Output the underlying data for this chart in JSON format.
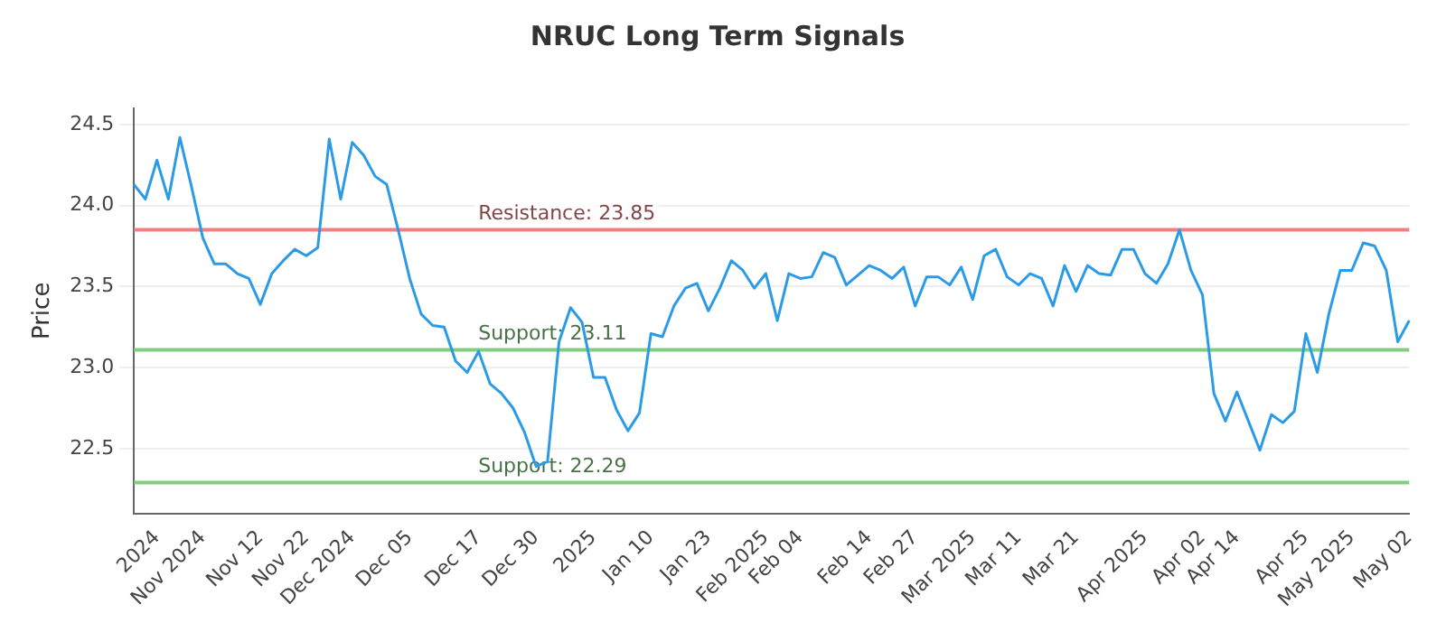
{
  "chart_data": {
    "type": "line",
    "title": "NRUC Long Term Signals",
    "ylabel": "Price",
    "categories": [
      null,
      null,
      "2024",
      null,
      null,
      null,
      "Nov 2024",
      null,
      null,
      null,
      null,
      "Nov 12",
      null,
      null,
      null,
      "Nov 22",
      null,
      null,
      null,
      "Dec 2024",
      null,
      null,
      null,
      null,
      "Dec 05",
      null,
      null,
      null,
      null,
      null,
      "Dec 17",
      null,
      null,
      null,
      null,
      "Dec 30",
      null,
      null,
      null,
      null,
      "2025",
      null,
      null,
      null,
      null,
      "Jan 10",
      null,
      null,
      null,
      null,
      "Jan 23",
      null,
      null,
      null,
      null,
      "Feb 2025",
      null,
      null,
      "Feb 04",
      null,
      null,
      null,
      null,
      null,
      "Feb 14",
      null,
      null,
      null,
      "Feb 27",
      null,
      null,
      null,
      null,
      "Mar 2025",
      null,
      null,
      null,
      "Mar 11",
      null,
      null,
      null,
      null,
      "Mar 21",
      null,
      null,
      null,
      null,
      null,
      "Apr 2025",
      null,
      null,
      null,
      null,
      "Apr 02",
      null,
      null,
      "Apr 14",
      null,
      null,
      null,
      null,
      null,
      "Apr 25",
      null,
      null,
      null,
      "May 2025",
      null,
      null,
      null,
      null,
      "May 02"
    ],
    "series": [
      {
        "color": "#2b9be8",
        "values": [
          24.13,
          24.04,
          24.28,
          24.04,
          24.42,
          24.12,
          23.8,
          23.64,
          23.64,
          23.58,
          23.55,
          23.39,
          23.58,
          23.66,
          23.73,
          23.69,
          23.74,
          24.41,
          24.04,
          24.39,
          24.31,
          24.18,
          24.13,
          23.85,
          23.55,
          23.33,
          23.26,
          23.25,
          23.04,
          22.97,
          23.1,
          22.9,
          22.84,
          22.75,
          22.6,
          22.39,
          22.42,
          23.16,
          23.37,
          23.28,
          22.94,
          22.94,
          22.74,
          22.61,
          22.72,
          23.21,
          23.19,
          23.38,
          23.49,
          23.52,
          23.35,
          23.49,
          23.66,
          23.6,
          23.49,
          23.58,
          23.29,
          23.58,
          23.55,
          23.56,
          23.71,
          23.68,
          23.51,
          23.57,
          23.63,
          23.6,
          23.55,
          23.62,
          23.38,
          23.56,
          23.56,
          23.51,
          23.62,
          23.42,
          23.69,
          23.73,
          23.56,
          23.51,
          23.58,
          23.55,
          23.38,
          23.63,
          23.47,
          23.63,
          23.58,
          23.57,
          23.73,
          23.73,
          23.58,
          23.52,
          23.64,
          23.85,
          23.6,
          23.45,
          22.84,
          22.67,
          22.85,
          22.67,
          22.49,
          22.71,
          22.66,
          22.73,
          23.21,
          22.97,
          23.33,
          23.6,
          23.6,
          23.77,
          23.75,
          23.6,
          23.16,
          23.29
        ]
      }
    ],
    "ylim": [
      22.1,
      24.6
    ],
    "yticks": [
      22.5,
      {
        "value": 23,
        "label": "23.0"
      },
      23.5,
      {
        "value": 24,
        "label": "24.0"
      },
      24.5
    ],
    "grid": "y",
    "marker": "none",
    "line_style": "solid",
    "legend": false,
    "ref_lines": [
      {
        "axis": "y",
        "value": 23.85,
        "label": "Resistance: 23.85",
        "color": "#f08080"
      },
      {
        "axis": "y",
        "value": 23.11,
        "label": "Support: 23.11",
        "color": "#7fcf7f"
      },
      {
        "axis": "y",
        "value": 22.29,
        "label": "Support: 22.29",
        "color": "#7fcf7f"
      }
    ]
  }
}
